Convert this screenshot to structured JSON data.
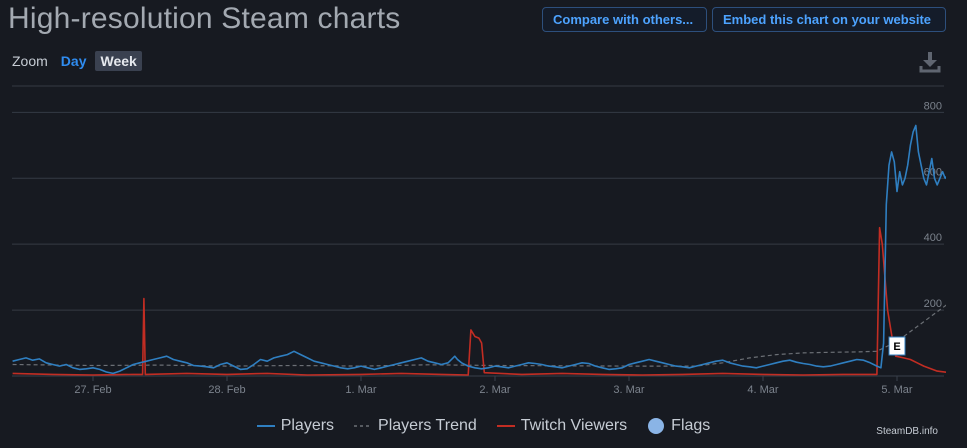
{
  "header": {
    "title": "High-resolution Steam charts",
    "compare_button": "Compare with others...",
    "embed_button": "Embed this chart on your website"
  },
  "zoom": {
    "label": "Zoom",
    "day": "Day",
    "week": "Week",
    "selected": "Week"
  },
  "toolbar": {
    "download_icon": "download-icon"
  },
  "credit": "SteamDB.info",
  "colors": {
    "background": "#171a21",
    "players": "#2f7fc1",
    "players_trend": "#6b6f75",
    "twitch": "#c22d23",
    "flags": "#8ab4e6",
    "grid": "#353a44",
    "accent": "#4da3ff"
  },
  "chart_data": {
    "type": "line",
    "x_axis": {
      "ticks": [
        "27. Feb",
        "28. Feb",
        "1. Mar",
        "2. Mar",
        "3. Mar",
        "4. Mar",
        "5. Mar"
      ],
      "range_days": [
        0,
        7
      ]
    },
    "y_axis": {
      "ticks": [
        "200",
        "400",
        "600",
        "800"
      ],
      "ylim": [
        0,
        880
      ]
    },
    "legend_position": "bottom",
    "grid": true,
    "series": [
      {
        "name": "Players",
        "key": "players",
        "points": [
          [
            -0.6,
            45
          ],
          [
            -0.55,
            50
          ],
          [
            -0.5,
            55
          ],
          [
            -0.45,
            48
          ],
          [
            -0.4,
            52
          ],
          [
            -0.35,
            40
          ],
          [
            -0.3,
            35
          ],
          [
            -0.25,
            30
          ],
          [
            -0.2,
            35
          ],
          [
            -0.15,
            25
          ],
          [
            -0.1,
            20
          ],
          [
            -0.05,
            22
          ],
          [
            0.0,
            25
          ],
          [
            0.05,
            20
          ],
          [
            0.1,
            12
          ],
          [
            0.15,
            8
          ],
          [
            0.2,
            15
          ],
          [
            0.25,
            25
          ],
          [
            0.3,
            35
          ],
          [
            0.35,
            40
          ],
          [
            0.4,
            45
          ],
          [
            0.45,
            50
          ],
          [
            0.5,
            55
          ],
          [
            0.55,
            60
          ],
          [
            0.6,
            50
          ],
          [
            0.65,
            45
          ],
          [
            0.7,
            40
          ],
          [
            0.75,
            32
          ],
          [
            0.8,
            30
          ],
          [
            0.85,
            28
          ],
          [
            0.9,
            25
          ],
          [
            0.95,
            35
          ],
          [
            1.0,
            40
          ],
          [
            1.05,
            30
          ],
          [
            1.1,
            20
          ],
          [
            1.15,
            22
          ],
          [
            1.2,
            35
          ],
          [
            1.25,
            50
          ],
          [
            1.3,
            45
          ],
          [
            1.35,
            55
          ],
          [
            1.4,
            60
          ],
          [
            1.45,
            65
          ],
          [
            1.5,
            75
          ],
          [
            1.55,
            65
          ],
          [
            1.6,
            55
          ],
          [
            1.65,
            45
          ],
          [
            1.7,
            40
          ],
          [
            1.75,
            35
          ],
          [
            1.8,
            30
          ],
          [
            1.85,
            25
          ],
          [
            1.9,
            22
          ],
          [
            1.95,
            25
          ],
          [
            2.0,
            30
          ],
          [
            2.05,
            25
          ],
          [
            2.1,
            20
          ],
          [
            2.15,
            25
          ],
          [
            2.2,
            30
          ],
          [
            2.25,
            35
          ],
          [
            2.3,
            40
          ],
          [
            2.35,
            45
          ],
          [
            2.4,
            50
          ],
          [
            2.45,
            55
          ],
          [
            2.5,
            45
          ],
          [
            2.55,
            40
          ],
          [
            2.6,
            35
          ],
          [
            2.65,
            40
          ],
          [
            2.7,
            60
          ],
          [
            2.72,
            50
          ],
          [
            2.75,
            40
          ],
          [
            2.8,
            30
          ],
          [
            2.85,
            25
          ],
          [
            2.9,
            22
          ],
          [
            2.95,
            25
          ],
          [
            3.0,
            30
          ],
          [
            3.05,
            28
          ],
          [
            3.1,
            25
          ],
          [
            3.15,
            30
          ],
          [
            3.2,
            35
          ],
          [
            3.25,
            40
          ],
          [
            3.3,
            38
          ],
          [
            3.35,
            35
          ],
          [
            3.4,
            30
          ],
          [
            3.45,
            28
          ],
          [
            3.5,
            25
          ],
          [
            3.55,
            30
          ],
          [
            3.6,
            35
          ],
          [
            3.65,
            40
          ],
          [
            3.7,
            38
          ],
          [
            3.75,
            30
          ],
          [
            3.8,
            25
          ],
          [
            3.85,
            20
          ],
          [
            3.9,
            22
          ],
          [
            3.95,
            25
          ],
          [
            4.0,
            35
          ],
          [
            4.05,
            40
          ],
          [
            4.1,
            45
          ],
          [
            4.15,
            50
          ],
          [
            4.2,
            45
          ],
          [
            4.25,
            40
          ],
          [
            4.3,
            35
          ],
          [
            4.35,
            30
          ],
          [
            4.4,
            28
          ],
          [
            4.45,
            25
          ],
          [
            4.5,
            30
          ],
          [
            4.55,
            35
          ],
          [
            4.6,
            40
          ],
          [
            4.65,
            45
          ],
          [
            4.7,
            48
          ],
          [
            4.75,
            40
          ],
          [
            4.8,
            35
          ],
          [
            4.85,
            30
          ],
          [
            4.9,
            28
          ],
          [
            4.95,
            25
          ],
          [
            5.0,
            30
          ],
          [
            5.05,
            35
          ],
          [
            5.1,
            40
          ],
          [
            5.15,
            45
          ],
          [
            5.2,
            48
          ],
          [
            5.25,
            42
          ],
          [
            5.3,
            38
          ],
          [
            5.35,
            35
          ],
          [
            5.4,
            30
          ],
          [
            5.45,
            28
          ],
          [
            5.5,
            30
          ],
          [
            5.55,
            35
          ],
          [
            5.6,
            40
          ],
          [
            5.65,
            45
          ],
          [
            5.7,
            50
          ],
          [
            5.75,
            48
          ],
          [
            5.8,
            40
          ],
          [
            5.85,
            30
          ],
          [
            5.88,
            25
          ],
          [
            5.9,
            100
          ],
          [
            5.92,
            520
          ],
          [
            5.94,
            640
          ],
          [
            5.96,
            680
          ],
          [
            5.98,
            650
          ],
          [
            6.0,
            560
          ],
          [
            6.02,
            620
          ],
          [
            6.04,
            580
          ],
          [
            6.06,
            600
          ],
          [
            6.08,
            640
          ],
          [
            6.1,
            700
          ],
          [
            6.12,
            740
          ],
          [
            6.14,
            760
          ],
          [
            6.16,
            680
          ],
          [
            6.18,
            640
          ],
          [
            6.2,
            600
          ],
          [
            6.22,
            580
          ],
          [
            6.24,
            620
          ],
          [
            6.26,
            660
          ],
          [
            6.28,
            600
          ],
          [
            6.3,
            580
          ],
          [
            6.32,
            600
          ],
          [
            6.34,
            620
          ],
          [
            6.36,
            600
          ],
          [
            6.38,
            610
          ],
          [
            6.4,
            590
          ],
          [
            6.42,
            620
          ],
          [
            6.44,
            600
          ],
          [
            6.46,
            610
          ],
          [
            6.48,
            620
          ],
          [
            6.5,
            630
          ],
          [
            6.52,
            620
          ],
          [
            6.54,
            650
          ],
          [
            6.56,
            700
          ],
          [
            6.58,
            720
          ],
          [
            6.6,
            780
          ],
          [
            6.62,
            800
          ],
          [
            6.64,
            790
          ]
        ]
      },
      {
        "name": "Players Trend",
        "key": "players_trend",
        "points": [
          [
            -0.6,
            35
          ],
          [
            0.0,
            32
          ],
          [
            0.5,
            33
          ],
          [
            1.0,
            30
          ],
          [
            1.5,
            32
          ],
          [
            2.0,
            30
          ],
          [
            2.5,
            34
          ],
          [
            3.0,
            32
          ],
          [
            3.5,
            31
          ],
          [
            4.0,
            30
          ],
          [
            4.5,
            30
          ],
          [
            4.7,
            40
          ],
          [
            4.9,
            55
          ],
          [
            5.1,
            65
          ],
          [
            5.3,
            70
          ],
          [
            5.5,
            72
          ],
          [
            5.7,
            73
          ],
          [
            5.85,
            75
          ],
          [
            5.95,
            95
          ],
          [
            6.05,
            120
          ],
          [
            6.15,
            150
          ],
          [
            6.25,
            180
          ],
          [
            6.35,
            210
          ],
          [
            6.45,
            240
          ],
          [
            6.55,
            270
          ],
          [
            6.64,
            300
          ]
        ]
      },
      {
        "name": "Twitch Viewers",
        "key": "twitch",
        "points": [
          [
            -0.6,
            8
          ],
          [
            -0.3,
            5
          ],
          [
            0.0,
            3
          ],
          [
            0.3,
            5
          ],
          [
            0.37,
            5
          ],
          [
            0.38,
            235
          ],
          [
            0.39,
            5
          ],
          [
            0.7,
            8
          ],
          [
            1.0,
            5
          ],
          [
            1.3,
            8
          ],
          [
            1.6,
            3
          ],
          [
            2.0,
            5
          ],
          [
            2.3,
            8
          ],
          [
            2.6,
            5
          ],
          [
            2.8,
            3
          ],
          [
            2.82,
            140
          ],
          [
            2.85,
            120
          ],
          [
            2.88,
            115
          ],
          [
            2.9,
            100
          ],
          [
            2.92,
            10
          ],
          [
            3.2,
            5
          ],
          [
            3.5,
            8
          ],
          [
            3.8,
            5
          ],
          [
            4.1,
            3
          ],
          [
            4.4,
            5
          ],
          [
            4.7,
            8
          ],
          [
            5.0,
            5
          ],
          [
            5.3,
            3
          ],
          [
            5.6,
            5
          ],
          [
            5.85,
            5
          ],
          [
            5.87,
            450
          ],
          [
            5.89,
            400
          ],
          [
            5.91,
            300
          ],
          [
            5.93,
            200
          ],
          [
            5.95,
            150
          ],
          [
            5.97,
            100
          ],
          [
            5.99,
            60
          ],
          [
            6.05,
            55
          ],
          [
            6.1,
            50
          ],
          [
            6.15,
            40
          ],
          [
            6.2,
            30
          ],
          [
            6.3,
            15
          ],
          [
            6.4,
            10
          ],
          [
            6.5,
            8
          ],
          [
            6.6,
            45
          ],
          [
            6.62,
            10
          ],
          [
            6.64,
            5
          ]
        ]
      }
    ],
    "flags": [
      {
        "x": 6.0,
        "label": "E"
      }
    ]
  }
}
